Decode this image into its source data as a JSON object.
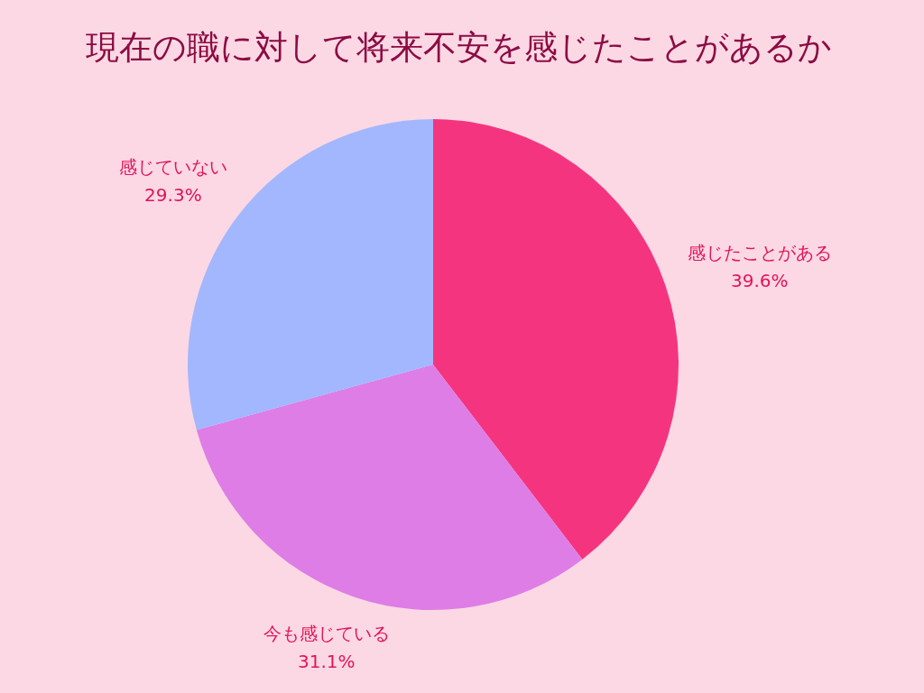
{
  "chart_data": {
    "type": "pie",
    "title": "現在の職に対して将来不安を感じたことがあるか",
    "categories": [
      "感じたことがある",
      "今も感じている",
      "感じていない"
    ],
    "values": [
      39.6,
      31.1,
      29.3
    ],
    "value_labels": [
      "39.6%",
      "31.1%",
      "29.3%"
    ],
    "colors": [
      "#f5347f",
      "#de7de6",
      "#a3b7ff"
    ]
  }
}
